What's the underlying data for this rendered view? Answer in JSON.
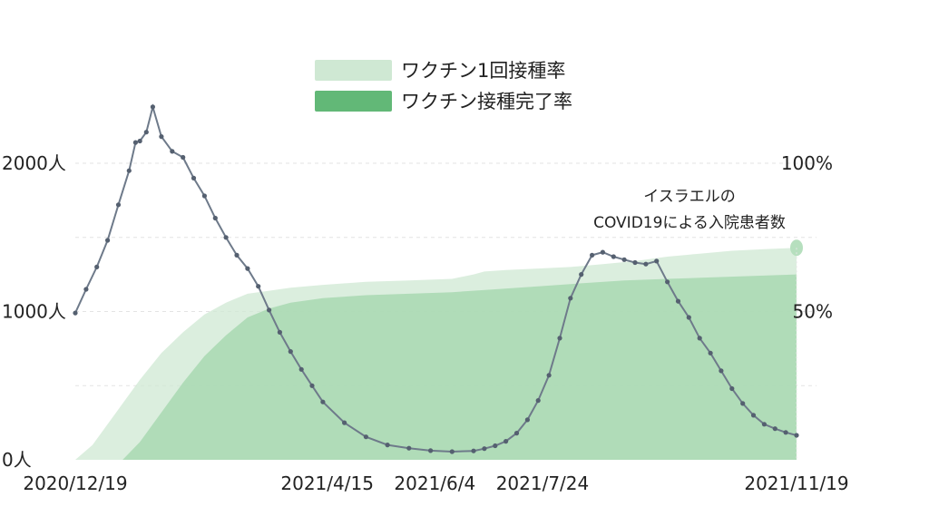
{
  "chart_data": {
    "type": "line",
    "title": "",
    "x_tick_labels": [
      "2020/12/19",
      "2021/4/15",
      "2021/6/4",
      "2021/7/24",
      "2021/11/19"
    ],
    "x_tick_days": [
      0,
      117,
      167,
      217,
      335
    ],
    "y_left": {
      "ticks": [
        "0人",
        "1000人",
        "2000人"
      ],
      "values": [
        0,
        1000,
        2000
      ],
      "range": [
        0,
        2500
      ]
    },
    "y_right": {
      "ticks": [
        "50%",
        "100%"
      ],
      "values": [
        50,
        100
      ],
      "range": [
        0,
        100
      ]
    },
    "annotation": [
      "イスラエルの",
      "COVID19による入院患者数"
    ],
    "legend_placement": "top-center",
    "grid": "dashed horizontal",
    "series": [
      {
        "name": "ワクチン1回接種率",
        "kind": "area",
        "axis": "right",
        "color": "#cfe8d3",
        "x_days": [
          0,
          8,
          15,
          22,
          30,
          40,
          50,
          60,
          70,
          80,
          90,
          100,
          115,
          135,
          155,
          175,
          185,
          190,
          200,
          215,
          230,
          245,
          260,
          275,
          290,
          305,
          320,
          335
        ],
        "values": [
          0,
          5,
          12,
          19,
          27,
          36,
          43,
          49,
          53,
          56,
          57,
          58,
          59,
          60,
          60.5,
          61,
          62.5,
          63.5,
          64,
          64.5,
          65,
          66,
          67,
          68.5,
          69.5,
          70.5,
          71,
          71.5
        ]
      },
      {
        "name": "ワクチン接種完了率",
        "kind": "area",
        "axis": "right",
        "color": "#a8d8b2",
        "x_days": [
          0,
          22,
          30,
          40,
          50,
          60,
          70,
          80,
          90,
          100,
          115,
          135,
          155,
          175,
          195,
          215,
          235,
          255,
          275,
          295,
          315,
          335
        ],
        "values": [
          0,
          0,
          6,
          16,
          26,
          35,
          42,
          48,
          51,
          53,
          54.5,
          55.5,
          56,
          56.5,
          57.5,
          58.5,
          59.5,
          60.5,
          61,
          61.5,
          62,
          62.5
        ]
      },
      {
        "name": "イスラエルのCOVID19による入院患者数",
        "kind": "line",
        "axis": "left",
        "color": "#6e7a8a",
        "x_days": [
          0,
          5,
          10,
          15,
          20,
          25,
          28,
          30,
          33,
          36,
          40,
          45,
          50,
          55,
          60,
          65,
          70,
          75,
          80,
          85,
          90,
          95,
          100,
          105,
          110,
          115,
          125,
          135,
          145,
          155,
          165,
          175,
          185,
          190,
          195,
          200,
          205,
          210,
          215,
          220,
          225,
          230,
          235,
          240,
          245,
          250,
          255,
          260,
          265,
          270,
          275,
          280,
          285,
          290,
          295,
          300,
          305,
          310,
          315,
          320,
          325,
          330,
          335
        ],
        "values": [
          990,
          1150,
          1300,
          1480,
          1720,
          1950,
          2140,
          2150,
          2210,
          2380,
          2180,
          2080,
          2040,
          1900,
          1780,
          1630,
          1500,
          1380,
          1290,
          1170,
          1010,
          860,
          730,
          610,
          500,
          390,
          250,
          155,
          100,
          78,
          62,
          55,
          60,
          75,
          95,
          125,
          180,
          270,
          400,
          570,
          820,
          1090,
          1250,
          1380,
          1400,
          1370,
          1350,
          1330,
          1320,
          1340,
          1200,
          1070,
          960,
          820,
          720,
          600,
          480,
          380,
          300,
          240,
          210,
          185,
          165
        ]
      }
    ]
  }
}
